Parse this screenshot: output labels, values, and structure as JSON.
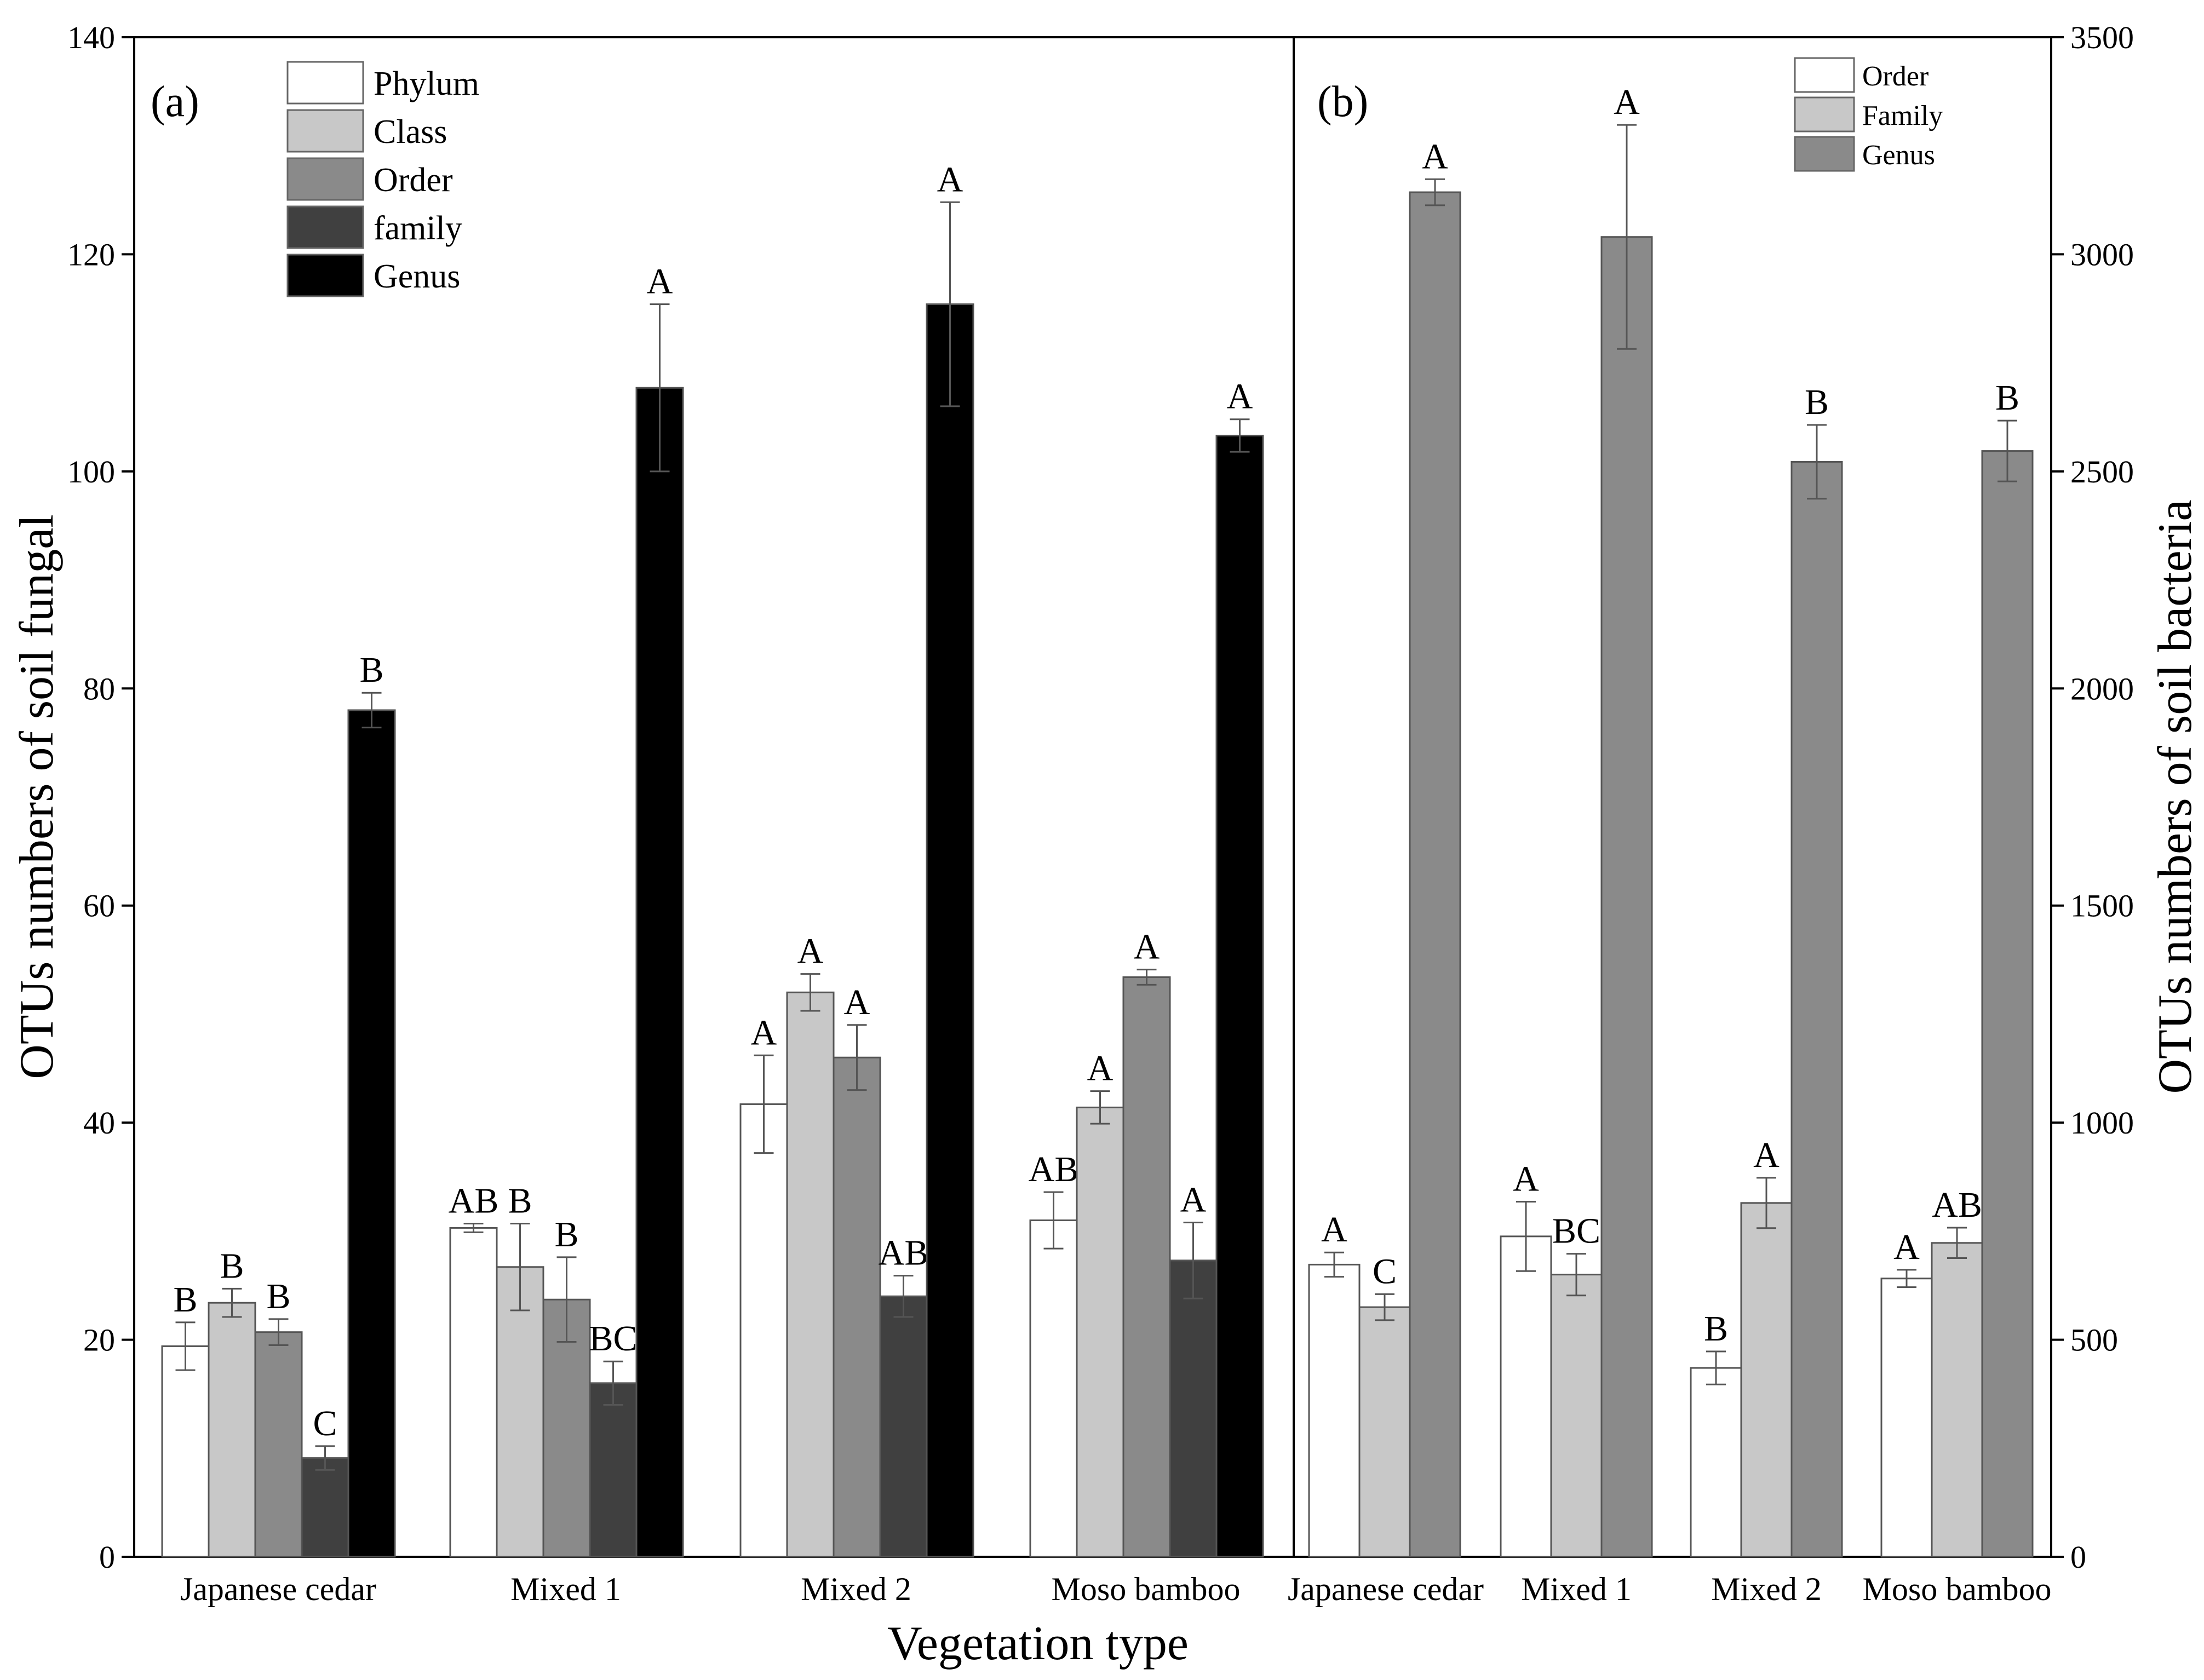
{
  "chart_data": [
    {
      "type": "bar",
      "panel_label": "(a)",
      "title": "",
      "xlabel": "Vegetation type",
      "ylabel": "OTUs numbers of soil fungal",
      "ylim": [
        0,
        140
      ],
      "yticks": [
        0,
        20,
        40,
        60,
        80,
        100,
        120,
        140
      ],
      "categories": [
        "Japanese cedar",
        "Mixed 1",
        "Mixed 2",
        "Moso bamboo"
      ],
      "legend_position": "top-left",
      "series": [
        {
          "name": "Phylum",
          "color": "#ffffff",
          "values": [
            19.4,
            30.3,
            41.7,
            31.0
          ],
          "errors": [
            2.2,
            0.4,
            4.5,
            2.6
          ],
          "letters": [
            "B",
            "AB",
            "A",
            "AB"
          ]
        },
        {
          "name": "Class",
          "color": "#c8c8c8",
          "values": [
            23.4,
            26.7,
            52.0,
            41.4
          ],
          "errors": [
            1.3,
            4.0,
            1.7,
            1.5
          ],
          "letters": [
            "B",
            "B",
            "A",
            "A"
          ]
        },
        {
          "name": "Order",
          "color": "#8a8a8a",
          "values": [
            20.7,
            23.7,
            46.0,
            53.4
          ],
          "errors": [
            1.2,
            3.9,
            3.0,
            0.7
          ],
          "letters": [
            "B",
            "B",
            "A",
            "A"
          ]
        },
        {
          "name": "family",
          "color": "#404040",
          "values": [
            9.1,
            16.0,
            24.0,
            27.3
          ],
          "errors": [
            1.1,
            2.0,
            1.9,
            3.5
          ],
          "letters": [
            "C",
            "BC",
            "AB",
            "A"
          ]
        },
        {
          "name": "Genus",
          "color": "#000000",
          "values": [
            78.0,
            107.7,
            115.4,
            103.3
          ],
          "errors": [
            1.6,
            7.7,
            9.4,
            1.5
          ],
          "letters": [
            "B",
            "A",
            "A",
            "A"
          ]
        }
      ]
    },
    {
      "type": "bar",
      "panel_label": "(b)",
      "title": "",
      "xlabel": "Vegetation type",
      "ylabel": "OTUs numbers of soil bacteria",
      "ylim": [
        0,
        3500
      ],
      "yticks": [
        0,
        500,
        1000,
        1500,
        2000,
        2500,
        3000,
        3500
      ],
      "categories": [
        "Japanese cedar",
        "Mixed 1",
        "Mixed 2",
        "Moso bamboo"
      ],
      "legend_position": "top-right",
      "series": [
        {
          "name": "Order",
          "color": "#ffffff",
          "values": [
            673,
            738,
            435,
            641
          ],
          "errors": [
            28,
            80,
            38,
            20
          ],
          "letters": [
            "A",
            "A",
            "B",
            "A"
          ]
        },
        {
          "name": "Family",
          "color": "#c8c8c8",
          "values": [
            575,
            650,
            815,
            723
          ],
          "errors": [
            30,
            48,
            58,
            35
          ],
          "letters": [
            "C",
            "BC",
            "A",
            "AB"
          ]
        },
        {
          "name": "Genus",
          "color": "#8a8a8a",
          "values": [
            3143,
            3040,
            2522,
            2547
          ],
          "errors": [
            30,
            258,
            85,
            70
          ],
          "letters": [
            "A",
            "A",
            "B",
            "B"
          ]
        }
      ]
    }
  ]
}
